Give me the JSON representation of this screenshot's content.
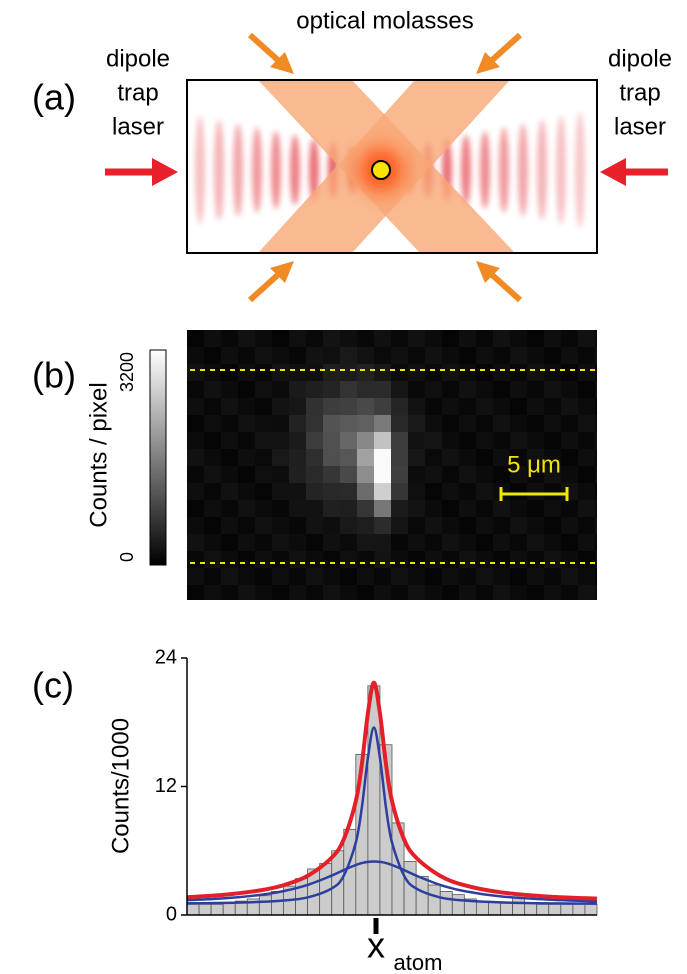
{
  "panel_a": {
    "label": "(a)",
    "title": "optical molasses",
    "left_label": [
      "dipole",
      "trap",
      "laser"
    ],
    "right_label": [
      "dipole",
      "trap",
      "laser"
    ]
  },
  "panel_b": {
    "label": "(b)",
    "colorbar_label": "Counts / pixel",
    "colorbar_ticks": [
      0,
      3200
    ],
    "scale_bar": "5 μm"
  },
  "chart_data": {
    "type": "histogram",
    "label": "(c)",
    "ylabel": "Counts/1000",
    "xlabel": "x",
    "xlabel_sub": "atom",
    "bins": [
      0,
      1,
      2,
      3,
      4,
      5,
      6,
      7,
      8,
      9,
      10,
      11,
      12,
      13,
      14,
      15,
      16,
      17,
      18,
      19,
      20,
      21,
      22,
      23,
      24,
      25,
      26,
      27,
      28,
      29,
      30,
      31,
      32,
      33,
      34
    ],
    "values": [
      1,
      1,
      1,
      1.1,
      1.3,
      1.5,
      1.8,
      2.2,
      2.7,
      3.4,
      4.3,
      4.8,
      6,
      8,
      15,
      21.4,
      15.9,
      8.6,
      5,
      3.6,
      2.8,
      2.2,
      1.9,
      1.5,
      1.3,
      1.2,
      1.1,
      1.6,
      1.1,
      1,
      1,
      1,
      1,
      1
    ],
    "color": "#cccccc",
    "xlim": [
      0,
      34
    ],
    "ylim": [
      0,
      24
    ],
    "yticks": [
      0,
      12,
      24
    ],
    "curves": [
      {
        "color": "#2d3f9e",
        "x": [
          0,
          3,
          6,
          8,
          10,
          12,
          13,
          14,
          14.5,
          15,
          15.5,
          16,
          16.5,
          17,
          18,
          19,
          21,
          23,
          26,
          30,
          34
        ],
        "values": [
          1.38,
          1.55,
          1.87,
          2.23,
          2.81,
          3.68,
          4.2,
          4.67,
          4.85,
          4.96,
          5,
          4.96,
          4.85,
          4.67,
          4.2,
          3.68,
          2.81,
          2.23,
          1.74,
          1.43,
          1.27
        ]
      },
      {
        "color": "#2d3f9e",
        "x": [
          0,
          3,
          6,
          8,
          10,
          12,
          13,
          14,
          14.5,
          15,
          15.5,
          16,
          16.5,
          17,
          18,
          19,
          21,
          23,
          26,
          30,
          34
        ],
        "values": [
          1.08,
          1.13,
          1.22,
          1.35,
          1.64,
          2.48,
          3.67,
          6.77,
          10.04,
          14.67,
          17.5,
          14.67,
          10.04,
          6.77,
          3.67,
          2.48,
          1.64,
          1.35,
          1.18,
          1.09,
          1.06
        ]
      },
      {
        "color": "#e3202a",
        "x": [
          0,
          3,
          6,
          8,
          10,
          12,
          13,
          14,
          14.5,
          15,
          15.5,
          16,
          16.5,
          17,
          18,
          19,
          21,
          23,
          26,
          30,
          34
        ],
        "values": [
          1.66,
          1.88,
          2.29,
          2.78,
          3.65,
          5.36,
          7.07,
          10.64,
          14.09,
          18.83,
          21.7,
          18.83,
          14.09,
          10.64,
          7.07,
          5.36,
          3.65,
          2.78,
          2.12,
          1.72,
          1.53
        ]
      }
    ]
  }
}
